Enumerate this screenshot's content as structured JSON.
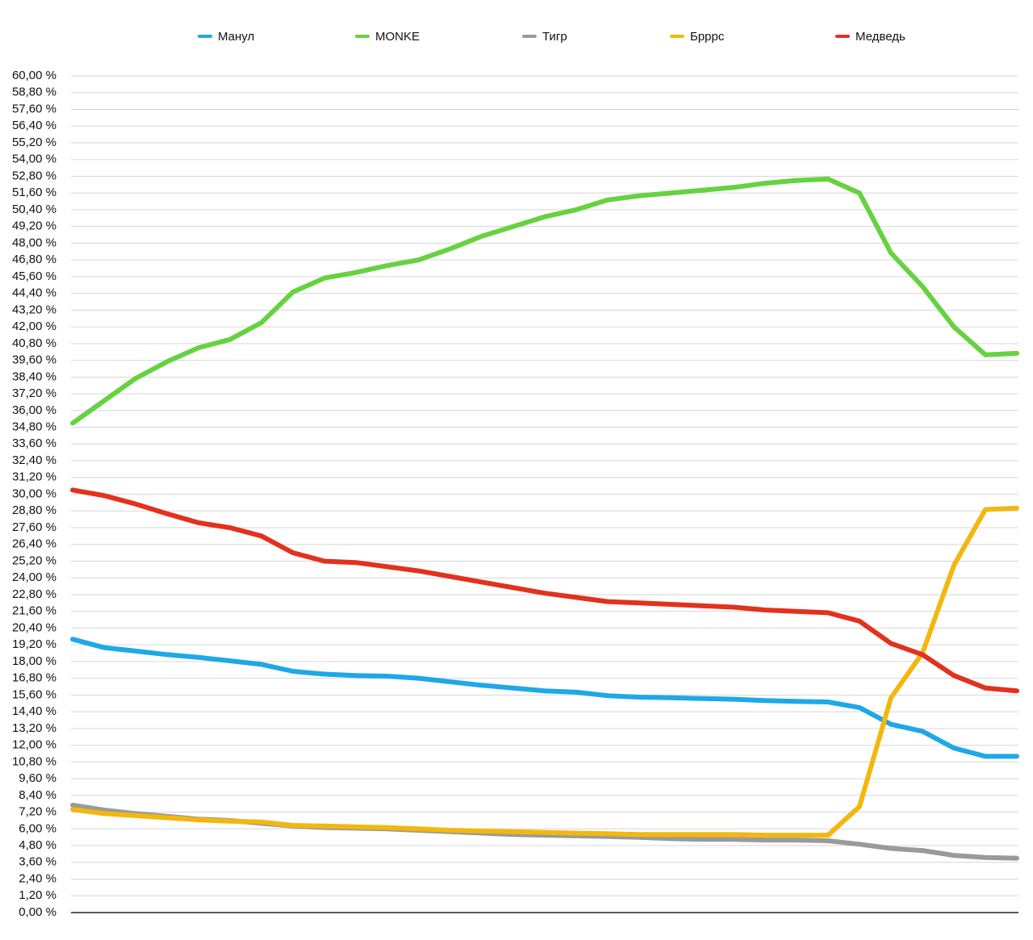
{
  "chart_data": {
    "type": "line",
    "categories": [
      null,
      null,
      null,
      null,
      null,
      null,
      null,
      null,
      null,
      null,
      null,
      null,
      null,
      null,
      null,
      null,
      null,
      null,
      null,
      null,
      null,
      null,
      null,
      null,
      null,
      null,
      null,
      null,
      null,
      null,
      null
    ],
    "series": [
      {
        "name": "Манул",
        "color": "#1ea8e6",
        "values": [
          19.6,
          19.0,
          18.75,
          18.5,
          18.3,
          18.05,
          17.8,
          17.3,
          17.1,
          17.0,
          16.95,
          16.8,
          16.55,
          16.3,
          16.1,
          15.9,
          15.8,
          15.55,
          15.45,
          15.4,
          15.35,
          15.3,
          15.2,
          15.15,
          15.1,
          14.7,
          13.5,
          13.0,
          11.8,
          11.2,
          11.2
        ]
      },
      {
        "name": "MONKE",
        "color": "#66d240",
        "values": [
          35.1,
          36.7,
          38.3,
          39.5,
          40.5,
          41.1,
          42.3,
          44.5,
          45.5,
          45.9,
          46.4,
          46.8,
          47.6,
          48.5,
          49.2,
          49.9,
          50.4,
          51.1,
          51.4,
          51.6,
          51.8,
          52.0,
          52.3,
          52.5,
          52.6,
          51.6,
          47.3,
          44.9,
          42.0,
          40.0,
          40.1
        ]
      },
      {
        "name": "Тигр",
        "color": "#9a9a9a",
        "values": [
          7.7,
          7.35,
          7.1,
          6.9,
          6.7,
          6.6,
          6.4,
          6.2,
          6.1,
          6.05,
          6.0,
          5.9,
          5.8,
          5.7,
          5.6,
          5.55,
          5.5,
          5.45,
          5.4,
          5.3,
          5.25,
          5.25,
          5.2,
          5.2,
          5.15,
          4.9,
          4.6,
          4.45,
          4.1,
          3.95,
          3.9
        ]
      },
      {
        "name": "Брррс",
        "color": "#f2b80f",
        "values": [
          7.4,
          7.1,
          6.95,
          6.8,
          6.65,
          6.55,
          6.5,
          6.25,
          6.2,
          6.15,
          6.1,
          6.0,
          5.9,
          5.85,
          5.8,
          5.75,
          5.7,
          5.65,
          5.6,
          5.6,
          5.6,
          5.6,
          5.55,
          5.55,
          5.55,
          7.6,
          15.4,
          18.6,
          24.9,
          28.9,
          29.0
        ]
      },
      {
        "name": "Медведь",
        "color": "#e3311d",
        "values": [
          30.3,
          29.9,
          29.3,
          28.6,
          27.95,
          27.6,
          27.0,
          25.8,
          25.2,
          25.1,
          24.8,
          24.5,
          24.1,
          23.7,
          23.3,
          22.9,
          22.6,
          22.3,
          22.2,
          22.1,
          22.0,
          21.9,
          21.7,
          21.6,
          21.5,
          20.9,
          19.3,
          18.5,
          17.0,
          16.1,
          15.9
        ]
      }
    ],
    "ylim": [
      0,
      60
    ],
    "yticks": [
      {
        "value": 0,
        "label": "0,00 %"
      },
      {
        "value": 1.2,
        "label": "1,20 %"
      },
      {
        "value": 2.4,
        "label": "2,40 %"
      },
      {
        "value": 3.6,
        "label": "3,60 %"
      },
      {
        "value": 4.8,
        "label": "4,80 %"
      },
      {
        "value": 6,
        "label": "6,00 %"
      },
      {
        "value": 7.2,
        "label": "7,20 %"
      },
      {
        "value": 8.4,
        "label": "8,40 %"
      },
      {
        "value": 9.6,
        "label": "9,60 %"
      },
      {
        "value": 10.8,
        "label": "10,80 %"
      },
      {
        "value": 12,
        "label": "12,00 %"
      },
      {
        "value": 13.2,
        "label": "13,20 %"
      },
      {
        "value": 14.4,
        "label": "14,40 %"
      },
      {
        "value": 15.6,
        "label": "15,60 %"
      },
      {
        "value": 16.8,
        "label": "16,80 %"
      },
      {
        "value": 18,
        "label": "18,00 %"
      },
      {
        "value": 19.2,
        "label": "19,20 %"
      },
      {
        "value": 20.4,
        "label": "20,40 %"
      },
      {
        "value": 21.6,
        "label": "21,60 %"
      },
      {
        "value": 22.8,
        "label": "22,80 %"
      },
      {
        "value": 24,
        "label": "24,00 %"
      },
      {
        "value": 25.2,
        "label": "25,20 %"
      },
      {
        "value": 26.4,
        "label": "26,40 %"
      },
      {
        "value": 27.6,
        "label": "27,60 %"
      },
      {
        "value": 28.8,
        "label": "28,80 %"
      },
      {
        "value": 30,
        "label": "30,00 %"
      },
      {
        "value": 31.2,
        "label": "31,20 %"
      },
      {
        "value": 32.4,
        "label": "32,40 %"
      },
      {
        "value": 33.6,
        "label": "33,60 %"
      },
      {
        "value": 34.8,
        "label": "34,80 %"
      },
      {
        "value": 36,
        "label": "36,00 %"
      },
      {
        "value": 37.2,
        "label": "37,20 %"
      },
      {
        "value": 38.4,
        "label": "38,40 %"
      },
      {
        "value": 39.6,
        "label": "39,60 %"
      },
      {
        "value": 40.8,
        "label": "40,80 %"
      },
      {
        "value": 42,
        "label": "42,00 %"
      },
      {
        "value": 43.2,
        "label": "43,20 %"
      },
      {
        "value": 44.4,
        "label": "44,40 %"
      },
      {
        "value": 45.6,
        "label": "45,60 %"
      },
      {
        "value": 46.8,
        "label": "46,80 %"
      },
      {
        "value": 48,
        "label": "48,00 %"
      },
      {
        "value": 49.2,
        "label": "49,20 %"
      },
      {
        "value": 50.4,
        "label": "50,40 %"
      },
      {
        "value": 51.6,
        "label": "51,60 %"
      },
      {
        "value": 52.8,
        "label": "52,80 %"
      },
      {
        "value": 54,
        "label": "54,00 %"
      },
      {
        "value": 55.2,
        "label": "55,20 %"
      },
      {
        "value": 56.4,
        "label": "56,40 %"
      },
      {
        "value": 57.6,
        "label": "57,60 %"
      },
      {
        "value": 58.8,
        "label": "58,80 %"
      },
      {
        "value": 60,
        "label": "60,00 %"
      }
    ],
    "grid": true,
    "legend": "top"
  }
}
